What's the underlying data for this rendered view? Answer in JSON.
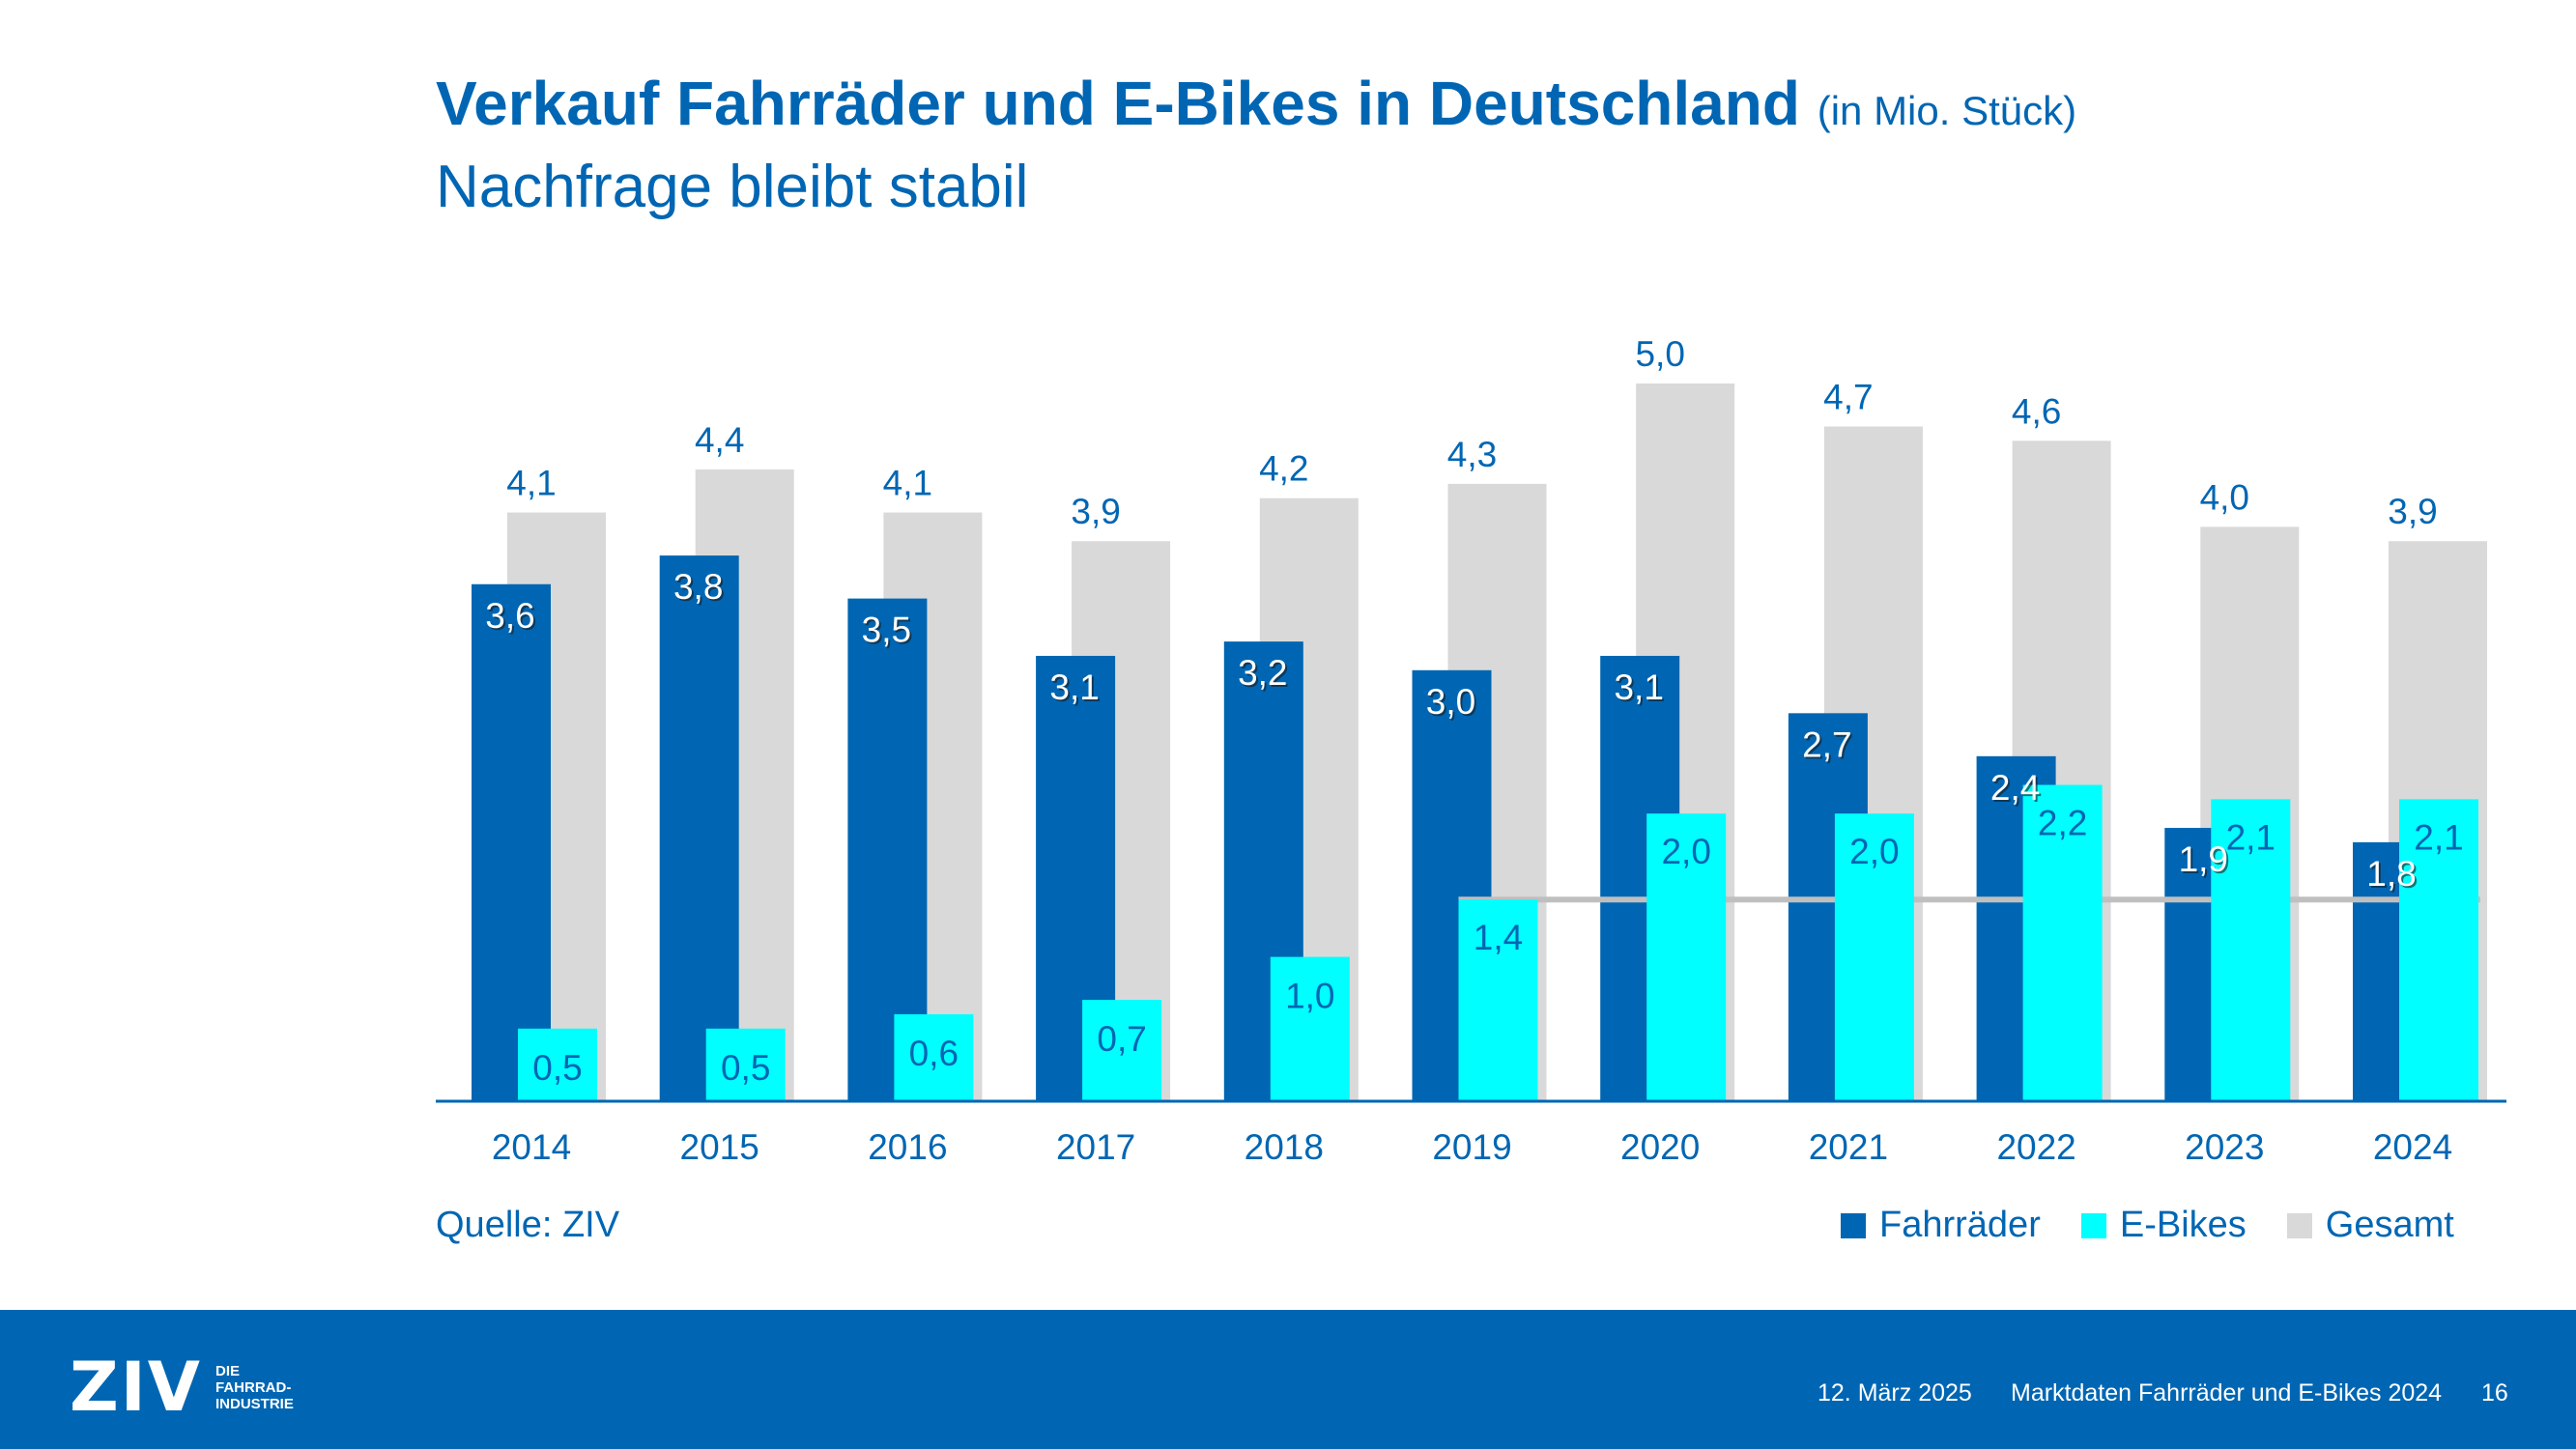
{
  "header": {
    "title": "Verkauf Fahrräder und E-Bikes in Deutschland",
    "unit": "(in Mio. Stück)",
    "subtitle": "Nachfrage bleibt stabil"
  },
  "source": "Quelle: ZIV",
  "colors": {
    "fahrraeder": "#0066b3",
    "ebikes": "#00ffff",
    "gesamt": "#d9d9d9",
    "text": "#0066b3",
    "reference_line": "#bfbfbf",
    "footer": "#0066b3"
  },
  "chart_data": {
    "type": "bar",
    "categories": [
      "2014",
      "2015",
      "2016",
      "2017",
      "2018",
      "2019",
      "2020",
      "2021",
      "2022",
      "2023",
      "2024"
    ],
    "series": [
      {
        "name": "Fahrräder",
        "values": [
          3.6,
          3.8,
          3.5,
          3.1,
          3.2,
          3.0,
          3.1,
          2.7,
          2.4,
          1.9,
          1.8
        ],
        "labels": [
          "3,6",
          "3,8",
          "3,5",
          "3,1",
          "3,2",
          "3,0",
          "3,1",
          "2,7",
          "2,4",
          "1,9",
          "1,8"
        ]
      },
      {
        "name": "E-Bikes",
        "values": [
          0.5,
          0.5,
          0.6,
          0.7,
          1.0,
          1.4,
          2.0,
          2.0,
          2.2,
          2.1,
          2.1
        ],
        "labels": [
          "0,5",
          "0,5",
          "0,6",
          "0,7",
          "1,0",
          "1,4",
          "2,0",
          "2,0",
          "2,2",
          "2,1",
          "2,1"
        ]
      },
      {
        "name": "Gesamt",
        "values": [
          4.1,
          4.4,
          4.1,
          3.9,
          4.2,
          4.3,
          5.0,
          4.7,
          4.6,
          4.0,
          3.9
        ],
        "labels": [
          "4,1",
          "4,4",
          "4,1",
          "3,9",
          "4,2",
          "4,3",
          "5,0",
          "4,7",
          "4,6",
          "4,0",
          "3,9"
        ]
      }
    ],
    "reference_line": {
      "value": 1.4,
      "from_category": "2019",
      "to_category": "2024"
    },
    "ylim": [
      0,
      5.0
    ],
    "grid": false,
    "legend": "bottom-right"
  },
  "footer": {
    "logo_word": "ZIV",
    "logo_tag": [
      "DIE",
      "FAHRRAD-",
      "INDUSTRIE"
    ],
    "date": "12. März 2025",
    "doc_title": "Marktdaten Fahrräder und E-Bikes 2024",
    "page": "16"
  }
}
